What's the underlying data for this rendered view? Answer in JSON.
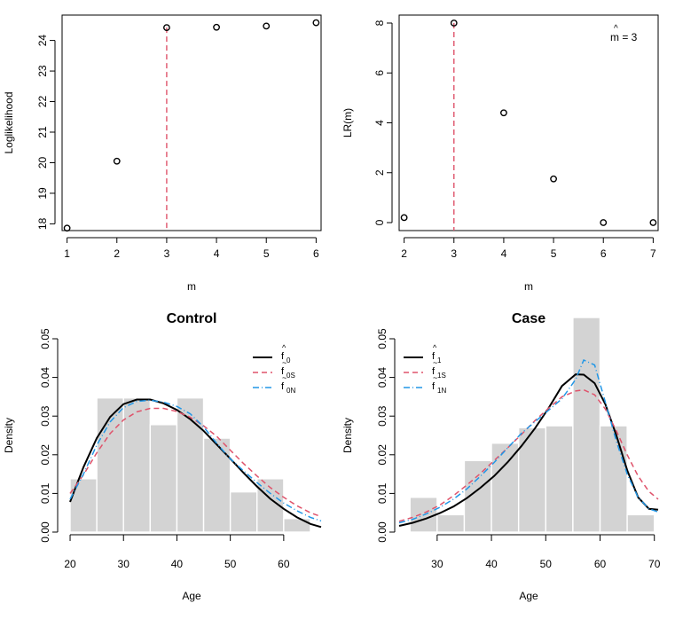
{
  "chart_data": [
    {
      "type": "scatter",
      "xlabel": "m",
      "ylabel": "Loglikelihood",
      "x": [
        1,
        2,
        3,
        4,
        5,
        6
      ],
      "y": [
        17.86,
        20.05,
        24.42,
        24.43,
        24.47,
        24.58
      ],
      "xticks": [
        "1",
        "2",
        "3",
        "4",
        "5",
        "6"
      ],
      "yticks": [
        "18",
        "19",
        "20",
        "21",
        "22",
        "23",
        "24"
      ],
      "xlim": [
        0.9,
        6.1
      ],
      "ylim": [
        17.78,
        24.83
      ],
      "vline": {
        "x": 3,
        "color": "#DF536B"
      }
    },
    {
      "type": "scatter",
      "xlabel": "m",
      "ylabel": "LR(m)",
      "x": [
        2,
        3,
        4,
        5,
        6,
        7
      ],
      "y": [
        0.2,
        8.0,
        4.4,
        1.75,
        0.0,
        0.0
      ],
      "xticks": [
        "2",
        "3",
        "4",
        "5",
        "6",
        "7"
      ],
      "yticks": [
        "0",
        "2",
        "4",
        "6",
        "8"
      ],
      "xlim": [
        1.9,
        7.1
      ],
      "ylim": [
        -0.32,
        8.32
      ],
      "vline": {
        "x": 3,
        "color": "#DF536B"
      },
      "annotation": {
        "hat": "^",
        "text": "m = 3"
      }
    },
    {
      "type": "histogram",
      "title": "Control",
      "xlabel": "Age",
      "ylabel": "Density",
      "xticks": [
        "20",
        "30",
        "40",
        "50",
        "60"
      ],
      "yticks": [
        "0.00",
        "0.01",
        "0.02",
        "0.03",
        "0.04",
        "0.05"
      ],
      "xlim": [
        18.5,
        67.0
      ],
      "ylim": [
        0,
        0.05
      ],
      "bin_edges": [
        20,
        25,
        30,
        35,
        40,
        45,
        50,
        55,
        60,
        65
      ],
      "densities": [
        0.0138,
        0.0347,
        0.0347,
        0.0278,
        0.0347,
        0.0243,
        0.0104,
        0.0138,
        0.0035
      ],
      "bar_color": "#D3D3D3",
      "series": [
        {
          "name": "f",
          "accent": "^",
          "sub": "0",
          "color": "#000000",
          "dash": "",
          "x": [
            20,
            22.5,
            25,
            27.5,
            30,
            32.5,
            35,
            37.5,
            40,
            42.5,
            45,
            47.5,
            50,
            52.5,
            55,
            57.5,
            60,
            62.5,
            65,
            67
          ],
          "y": [
            0.0078,
            0.0168,
            0.0243,
            0.0298,
            0.0331,
            0.0343,
            0.0343,
            0.0333,
            0.0316,
            0.0292,
            0.0262,
            0.0226,
            0.019,
            0.0153,
            0.0118,
            0.0086,
            0.006,
            0.0038,
            0.0021,
            0.0013
          ]
        },
        {
          "name": "f",
          "accent": "~",
          "sub": "0S",
          "color": "#DF536B",
          "dash": "6,4",
          "x": [
            20,
            22.5,
            25,
            27.5,
            30,
            32.5,
            35,
            37.5,
            40,
            42.5,
            45,
            47.5,
            50,
            52.5,
            55,
            57.5,
            60,
            62.5,
            65,
            67
          ],
          "y": [
            0.01,
            0.0148,
            0.0205,
            0.0255,
            0.029,
            0.0311,
            0.032,
            0.032,
            0.0312,
            0.0297,
            0.0275,
            0.0247,
            0.0212,
            0.0177,
            0.0145,
            0.0115,
            0.009,
            0.0068,
            0.005,
            0.004
          ]
        },
        {
          "name": "f",
          "accent": "~",
          "sub": "0N",
          "color": "#2297E6",
          "dash": "7,3,1,3",
          "x": [
            20,
            22.5,
            25,
            27.5,
            30,
            32.5,
            35,
            37.5,
            40,
            42.5,
            45,
            47.5,
            50,
            52.5,
            55,
            57.5,
            60,
            62.5,
            65,
            67
          ],
          "y": [
            0.0085,
            0.015,
            0.0225,
            0.0285,
            0.0322,
            0.0338,
            0.0341,
            0.0336,
            0.0325,
            0.0306,
            0.0272,
            0.0229,
            0.019,
            0.0158,
            0.0128,
            0.01,
            0.0075,
            0.0055,
            0.0038,
            0.0029
          ]
        }
      ]
    },
    {
      "type": "histogram",
      "title": "Case",
      "xlabel": "Age",
      "ylabel": "Density",
      "xticks": [
        "30",
        "40",
        "50",
        "60",
        "70"
      ],
      "yticks": [
        "0.00",
        "0.01",
        "0.02",
        "0.03",
        "0.04",
        "0.05"
      ],
      "xlim": [
        23.0,
        70.7
      ],
      "ylim": [
        0,
        0.05
      ],
      "bin_edges": [
        25,
        30,
        35,
        40,
        45,
        50,
        55,
        60,
        65,
        70
      ],
      "densities": [
        0.009,
        0.0045,
        0.0185,
        0.023,
        0.027,
        0.0275,
        0.0555,
        0.0275,
        0.0045
      ],
      "bar_color": "#D3D3D3",
      "series": [
        {
          "name": "f",
          "accent": "^",
          "sub": "1",
          "color": "#000000",
          "dash": "",
          "x": [
            23,
            25.5,
            28,
            30.5,
            33,
            35.5,
            38,
            40.5,
            43,
            45.5,
            48,
            50.5,
            53,
            55.5,
            57,
            59,
            61,
            63,
            65,
            67,
            69,
            70.7
          ],
          "y": [
            0.0016,
            0.0024,
            0.0035,
            0.0049,
            0.0066,
            0.0088,
            0.0115,
            0.0145,
            0.0181,
            0.0222,
            0.0268,
            0.032,
            0.0378,
            0.0408,
            0.0407,
            0.0385,
            0.033,
            0.025,
            0.016,
            0.009,
            0.006,
            0.0058
          ]
        },
        {
          "name": "f",
          "accent": "~",
          "sub": "1S",
          "color": "#DF536B",
          "dash": "6,4",
          "x": [
            23,
            25.5,
            28,
            30.5,
            33,
            35.5,
            38,
            40.5,
            43,
            45.5,
            48,
            50.5,
            53,
            55.5,
            57,
            59,
            61,
            63,
            65,
            67,
            69,
            70.7
          ],
          "y": [
            0.0028,
            0.0038,
            0.0052,
            0.007,
            0.0094,
            0.0122,
            0.0152,
            0.0185,
            0.0218,
            0.0252,
            0.0288,
            0.032,
            0.035,
            0.0365,
            0.0368,
            0.0355,
            0.0318,
            0.0262,
            0.02,
            0.0145,
            0.0105,
            0.0085
          ]
        },
        {
          "name": "f",
          "accent": "~",
          "sub": "1N",
          "color": "#2297E6",
          "dash": "7,3,1,3",
          "x": [
            23,
            25.5,
            28,
            30.5,
            33,
            35.5,
            38,
            40.5,
            43,
            45.5,
            48,
            50.5,
            53,
            55.5,
            57,
            59,
            61,
            63,
            65,
            67,
            69,
            70.7
          ],
          "y": [
            0.0024,
            0.0033,
            0.0047,
            0.0064,
            0.0085,
            0.0112,
            0.0145,
            0.018,
            0.0218,
            0.0255,
            0.0285,
            0.0315,
            0.0345,
            0.0395,
            0.0445,
            0.0432,
            0.0335,
            0.0235,
            0.015,
            0.009,
            0.006,
            0.0052
          ]
        }
      ]
    }
  ]
}
